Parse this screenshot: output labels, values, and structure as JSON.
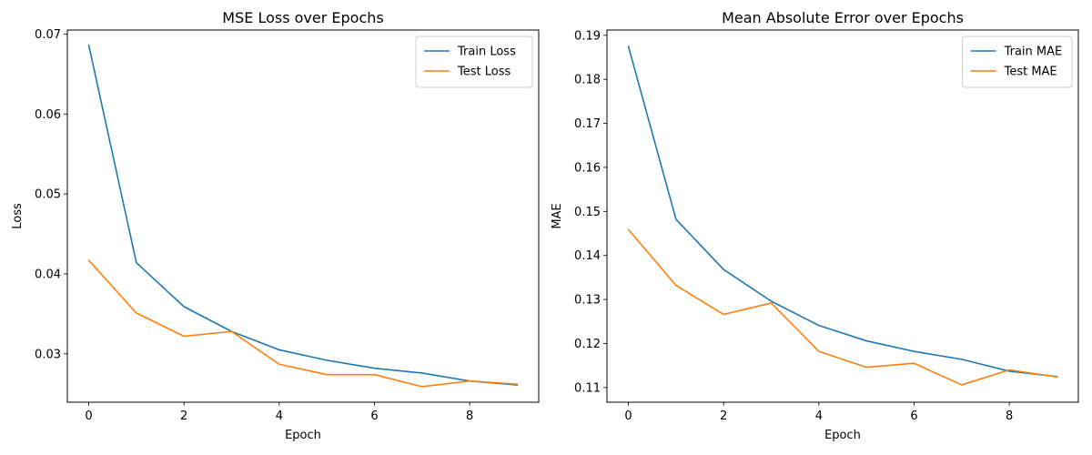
{
  "chart_data": [
    {
      "type": "line",
      "title": "MSE Loss over Epochs",
      "xlabel": "Epoch",
      "ylabel": "Loss",
      "xlim": [
        -0.45,
        9.45
      ],
      "ylim": [
        0.02395,
        0.0705
      ],
      "xticks": [
        0,
        2,
        4,
        6,
        8
      ],
      "yticks": [
        0.03,
        0.04,
        0.05,
        0.06,
        0.07
      ],
      "xtick_labels": [
        "0",
        "2",
        "4",
        "6",
        "8"
      ],
      "ytick_labels": [
        "0.03",
        "0.04",
        "0.05",
        "0.06",
        "0.07"
      ],
      "legend": "top-right",
      "grid": false,
      "x": [
        0,
        1,
        2,
        3,
        4,
        5,
        6,
        7,
        8,
        9
      ],
      "series": [
        {
          "name": "Train Loss",
          "color": "#1f77b4",
          "values": [
            0.0686,
            0.0414,
            0.0359,
            0.0328,
            0.0305,
            0.0292,
            0.0282,
            0.0276,
            0.0266,
            0.0261
          ]
        },
        {
          "name": "Test Loss",
          "color": "#ff7f0e",
          "values": [
            0.0417,
            0.0351,
            0.0322,
            0.0328,
            0.0287,
            0.0274,
            0.0274,
            0.0259,
            0.0266,
            0.0262
          ]
        }
      ]
    },
    {
      "type": "line",
      "title": "Mean Absolute Error over Epochs",
      "xlabel": "Epoch",
      "ylabel": "MAE",
      "xlim": [
        -0.45,
        9.45
      ],
      "ylim": [
        0.10666,
        0.1912
      ],
      "xticks": [
        0,
        2,
        4,
        6,
        8
      ],
      "yticks": [
        0.11,
        0.12,
        0.13,
        0.14,
        0.15,
        0.16,
        0.17,
        0.18,
        0.19
      ],
      "xtick_labels": [
        "0",
        "2",
        "4",
        "6",
        "8"
      ],
      "ytick_labels": [
        "0.11",
        "0.12",
        "0.13",
        "0.14",
        "0.15",
        "0.16",
        "0.17",
        "0.18",
        "0.19"
      ],
      "legend": "top-right",
      "grid": false,
      "x": [
        0,
        1,
        2,
        3,
        4,
        5,
        6,
        7,
        8,
        9
      ],
      "series": [
        {
          "name": "Train MAE",
          "color": "#1f77b4",
          "values": [
            0.1875,
            0.1482,
            0.1368,
            0.1296,
            0.1241,
            0.1206,
            0.1182,
            0.1164,
            0.1137,
            0.1125
          ]
        },
        {
          "name": "Test MAE",
          "color": "#ff7f0e",
          "values": [
            0.1459,
            0.1332,
            0.1266,
            0.1292,
            0.1182,
            0.1146,
            0.1155,
            0.1106,
            0.114,
            0.1124
          ]
        }
      ]
    }
  ]
}
